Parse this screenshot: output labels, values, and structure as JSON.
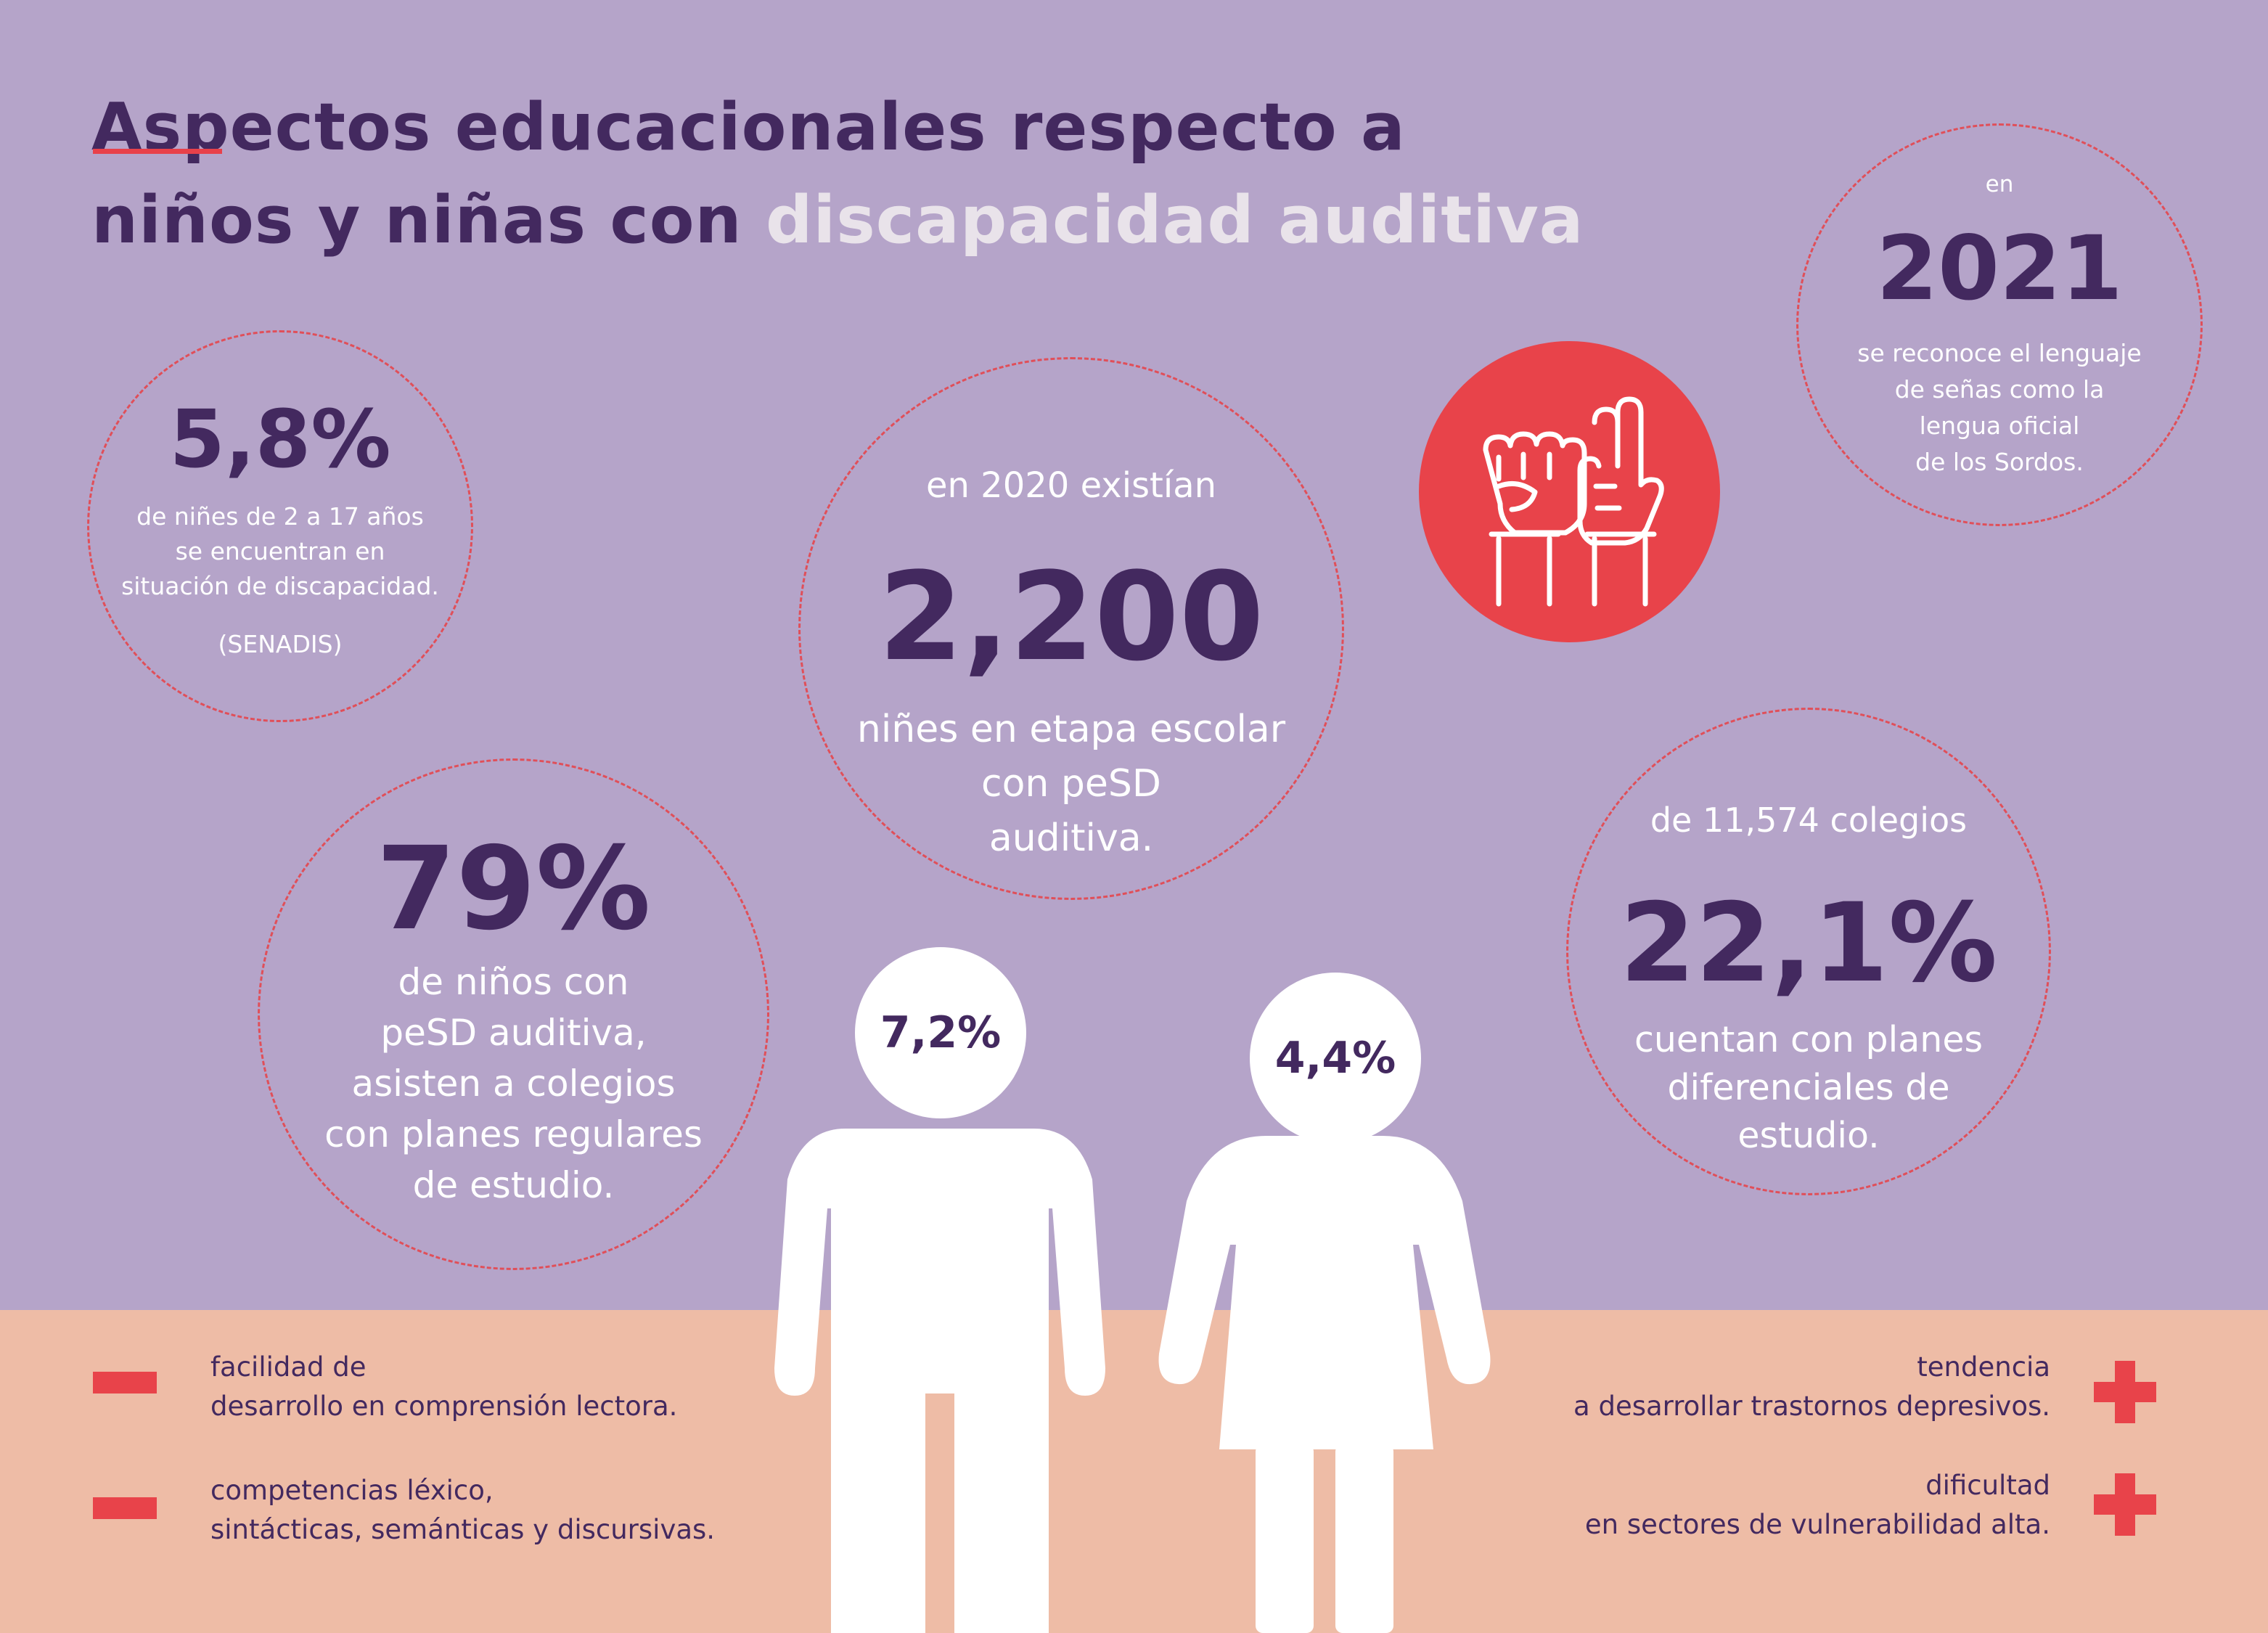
{
  "title": {
    "part1": "Aspectos educacionales respecto a niños y niñas con ",
    "highlight": "discapacidad auditiva"
  },
  "stats": {
    "pct58": {
      "value": "5,8%",
      "line1": "de niñes de 2 a 17 años",
      "line2": "se encuentran en",
      "line3": "situación de discapacidad.",
      "source": "(SENADIS)"
    },
    "count2200": {
      "intro": "en 2020 existían",
      "value": "2,200",
      "line1": "niñes en etapa escolar",
      "line2": "con peSD",
      "line3": "auditiva."
    },
    "year2021": {
      "intro": "en",
      "value": "2021",
      "line1": "se reconoce el lenguaje",
      "line2": "de señas como la",
      "line3": "lengua oficial",
      "line4": "de los Sordos."
    },
    "pct79": {
      "value": "79%",
      "line1": "de niños con",
      "line2": "peSD auditiva,",
      "line3": "asisten a colegios",
      "line4": "con planes regulares",
      "line5": "de estudio."
    },
    "pct221": {
      "intro": "de 11,574 colegios",
      "value": "22,1%",
      "line1": "cuentan con planes",
      "line2": "diferenciales de",
      "line3": "estudio."
    }
  },
  "figures": {
    "boy_pct": "7,2%",
    "girl_pct": "4,4%"
  },
  "minus_items": [
    {
      "line1": "facilidad de",
      "line2": "desarrollo en comprensión lectora."
    },
    {
      "line1": "competencias léxico,",
      "line2": "sintácticas, semánticas y discursivas."
    }
  ],
  "plus_items": [
    {
      "line1": "tendencia",
      "line2": "a desarrollar trastornos depresivos."
    },
    {
      "line1": "dificultad",
      "line2": "en sectores de vulnerabilidad alta."
    }
  ],
  "icons": {
    "sign_language": "raised-hands-sign-language-icon",
    "boy": "boy-figure-icon",
    "girl": "girl-figure-icon",
    "minus": "minus-icon",
    "plus": "plus-icon"
  },
  "colors": {
    "background": "#b5a4c9",
    "band": "#eebca6",
    "dark": "#43295f",
    "accent": "#e8434a",
    "white": "#ffffff"
  }
}
